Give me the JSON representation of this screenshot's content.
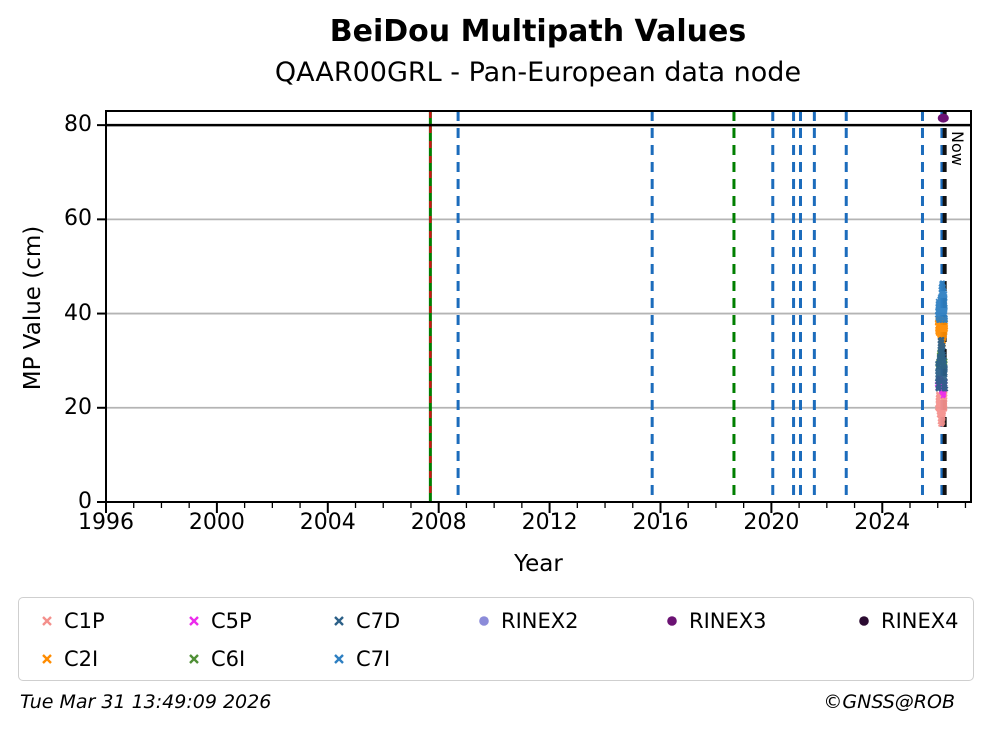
{
  "figure": {
    "title": "BeiDou Multipath Values",
    "subtitle": "QAAR00GRL - Pan-European data node",
    "footer_left": "Tue Mar 31 13:49:09 2026",
    "footer_right": "©GNSS@ROB",
    "now_label": "Now"
  },
  "chart_data": {
    "type": "scatter",
    "title": "BeiDou Multipath Values",
    "subtitle": "QAAR00GRL - Pan-European data node",
    "xlabel": "Year",
    "ylabel": "MP Value (cm)",
    "xlim": [
      1996,
      2027.2
    ],
    "ylim": [
      0,
      83
    ],
    "xticks": [
      1996,
      2000,
      2004,
      2008,
      2012,
      2016,
      2020,
      2024
    ],
    "x_minor_tick_interval": 1,
    "yticks": [
      0,
      20,
      40,
      60,
      80
    ],
    "grid": {
      "y_values": [
        20,
        40,
        60
      ],
      "color": "#b4b4b4"
    },
    "threshold_line": {
      "y": 80,
      "color": "#000000"
    },
    "event_lines": [
      {
        "year": 2007.7,
        "color": "#007f00",
        "style": "solid",
        "overlay": {
          "color": "#c81616",
          "style": "dashed"
        }
      },
      {
        "year": 2008.7,
        "color": "#1c6cbc",
        "style": "dashed"
      },
      {
        "year": 2015.7,
        "color": "#1c6cbc",
        "style": "dashed"
      },
      {
        "year": 2018.65,
        "color": "#007f00",
        "style": "dashed"
      },
      {
        "year": 2020.05,
        "color": "#1c6cbc",
        "style": "dashed"
      },
      {
        "year": 2020.8,
        "color": "#1c6cbc",
        "style": "dashed"
      },
      {
        "year": 2021.05,
        "color": "#1c6cbc",
        "style": "dashed"
      },
      {
        "year": 2021.55,
        "color": "#1c6cbc",
        "style": "dashed"
      },
      {
        "year": 2022.7,
        "color": "#1c6cbc",
        "style": "dashed"
      },
      {
        "year": 2025.45,
        "color": "#1c6cbc",
        "style": "dashed"
      },
      {
        "year": 2026.15,
        "color": "#1c6cbc",
        "style": "dashed"
      },
      {
        "year": 2026.25,
        "color": "#111111",
        "style": "dashed",
        "width": 4,
        "label": "Now"
      }
    ],
    "series": [
      {
        "name": "C1P",
        "color": "#f4908c",
        "marker": "x",
        "x_range": [
          2026.0,
          2026.27
        ],
        "y_range": [
          16.5,
          23.0
        ],
        "n_points": 150
      },
      {
        "name": "C2I",
        "color": "#ff8c00",
        "marker": "x",
        "x_range": [
          2026.0,
          2026.27
        ],
        "y_range": [
          33.0,
          39.0
        ],
        "n_points": 140
      },
      {
        "name": "C5P",
        "color": "#ec2bec",
        "marker": "x",
        "x_range": [
          2026.0,
          2026.27
        ],
        "y_range": [
          22.5,
          26.5
        ],
        "n_points": 45
      },
      {
        "name": "C6I",
        "color": "#4f8f35",
        "marker": "x",
        "x_range": [
          2026.0,
          2026.27
        ],
        "y_range": [
          28.5,
          32.0
        ],
        "n_points": 30
      },
      {
        "name": "C7D",
        "color": "#2c6088",
        "marker": "x",
        "x_range": [
          2026.0,
          2026.27
        ],
        "y_range": [
          24.0,
          34.5
        ],
        "n_points": 220
      },
      {
        "name": "C7I",
        "color": "#2e7fc2",
        "marker": "x",
        "x_range": [
          2026.0,
          2026.27
        ],
        "y_range": [
          38.5,
          46.5
        ],
        "n_points": 220
      },
      {
        "name": "RINEX2",
        "color": "#8b8bd9",
        "marker": "circle",
        "points": []
      },
      {
        "name": "RINEX3",
        "color": "#6b1273",
        "marker": "circle",
        "points": [
          [
            2026.2,
            81.5
          ]
        ]
      },
      {
        "name": "RINEX4",
        "color": "#2b0b31",
        "marker": "circle",
        "points": []
      }
    ],
    "legend": {
      "position": "bottom",
      "columns": [
        [
          "C1P",
          "C2I"
        ],
        [
          "C5P",
          "C6I"
        ],
        [
          "C7D",
          "C7I"
        ],
        [
          "RINEX2"
        ],
        [
          "RINEX3"
        ],
        [
          "RINEX4"
        ]
      ]
    }
  }
}
